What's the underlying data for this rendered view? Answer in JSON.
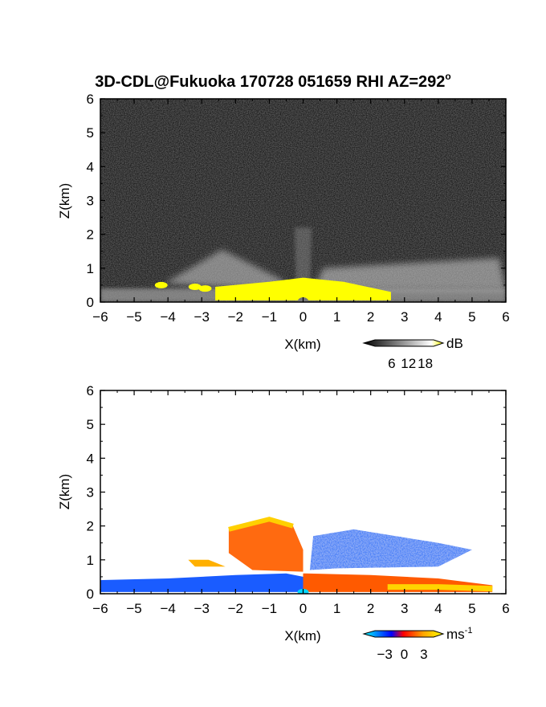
{
  "chart_data": [
    {
      "type": "heatmap",
      "title": "3D-CDL@Fukuoka 170728 051659 RHI AZ=292",
      "title_suffix": "o",
      "xlabel": "X(km)",
      "ylabel": "Z(km)",
      "xlim": [
        -6,
        6
      ],
      "ylim": [
        0,
        6
      ],
      "x_ticks": [
        "-6",
        "-5",
        "-4",
        "-3",
        "-2",
        "-1",
        "0",
        "1",
        "2",
        "3",
        "4",
        "5",
        "6"
      ],
      "y_ticks": [
        "0",
        "1",
        "2",
        "3",
        "4",
        "5",
        "6"
      ],
      "background_color": "#161616",
      "colorbar": {
        "unit": "dB",
        "ticks": [
          "6",
          "12",
          "18"
        ],
        "tick_values": [
          6,
          12,
          18
        ],
        "range": [
          0,
          21
        ],
        "colors": [
          "#000000",
          "#ffffff",
          "#ffff00"
        ]
      },
      "features": {
        "fan_left": [
          [
            -4.1,
            0.55
          ],
          [
            -2.4,
            1.55
          ],
          [
            -0.6,
            0.65
          ],
          [
            -0.6,
            0.35
          ]
        ],
        "fan_center": [
          [
            -0.2,
            0.1
          ],
          [
            -0.25,
            2.2
          ],
          [
            0.25,
            2.2
          ],
          [
            0.2,
            0.1
          ]
        ],
        "fan_right": [
          [
            0.3,
            0.35
          ],
          [
            0.6,
            1.0
          ],
          [
            5.8,
            1.3
          ],
          [
            6.0,
            0.35
          ]
        ],
        "near_ground_band": [
          [
            -6.0,
            0.0
          ],
          [
            -6.0,
            0.4
          ],
          [
            6.0,
            0.4
          ],
          [
            6.0,
            0.0
          ]
        ],
        "saturated_area": [
          [
            -2.6,
            0.05
          ],
          [
            -2.6,
            0.45
          ],
          [
            -1.0,
            0.6
          ],
          [
            0.0,
            0.72
          ],
          [
            1.2,
            0.6
          ],
          [
            2.6,
            0.3
          ],
          [
            2.6,
            0.05
          ]
        ],
        "saturated_spots": [
          [
            -4.2,
            0.5
          ],
          [
            -3.2,
            0.45
          ],
          [
            -2.9,
            0.4
          ]
        ]
      }
    },
    {
      "type": "heatmap",
      "title": "",
      "xlabel": "X(km)",
      "ylabel": "Z(km)",
      "xlim": [
        -6,
        6
      ],
      "ylim": [
        0,
        6
      ],
      "x_ticks": [
        "-6",
        "-5",
        "-4",
        "-3",
        "-2",
        "-1",
        "0",
        "1",
        "2",
        "3",
        "4",
        "5",
        "6"
      ],
      "y_ticks": [
        "0",
        "1",
        "2",
        "3",
        "4",
        "5",
        "6"
      ],
      "background_color": "#ffffff",
      "colorbar": {
        "unit": "ms",
        "unit_exponent": "-1",
        "ticks": [
          "-3",
          "0",
          "3"
        ],
        "tick_values": [
          -3,
          0,
          3
        ],
        "range": [
          -4.5,
          4.5
        ],
        "colors": [
          "#00ffff",
          "#0000ff",
          "#ff0000",
          "#ffa500",
          "#ffff00"
        ]
      },
      "features": {
        "inflow_layer": [
          [
            -6.0,
            0.05
          ],
          [
            -6.0,
            0.4
          ],
          [
            -4.0,
            0.45
          ],
          [
            -2.0,
            0.55
          ],
          [
            -0.5,
            0.6
          ],
          [
            0.0,
            0.5
          ],
          [
            0.0,
            0.05
          ]
        ],
        "outflow_layer": [
          [
            0.0,
            0.05
          ],
          [
            0.0,
            0.6
          ],
          [
            2.0,
            0.55
          ],
          [
            4.0,
            0.45
          ],
          [
            5.6,
            0.25
          ],
          [
            5.6,
            0.05
          ]
        ],
        "updraft_plume": [
          [
            -2.2,
            1.9
          ],
          [
            -1.0,
            2.2
          ],
          [
            -0.3,
            2.0
          ],
          [
            0.0,
            1.3
          ],
          [
            0.0,
            0.65
          ],
          [
            -1.5,
            0.7
          ],
          [
            -2.2,
            1.2
          ]
        ],
        "upper_right_plume": [
          [
            0.2,
            0.7
          ],
          [
            0.3,
            1.7
          ],
          [
            1.5,
            1.9
          ],
          [
            4.0,
            1.5
          ],
          [
            5.0,
            1.3
          ],
          [
            4.0,
            0.8
          ],
          [
            1.0,
            0.75
          ]
        ],
        "left_edge_streak": [
          [
            -3.4,
            1.0
          ],
          [
            -2.8,
            1.0
          ],
          [
            -2.3,
            0.8
          ],
          [
            -3.2,
            0.8
          ]
        ]
      }
    }
  ]
}
